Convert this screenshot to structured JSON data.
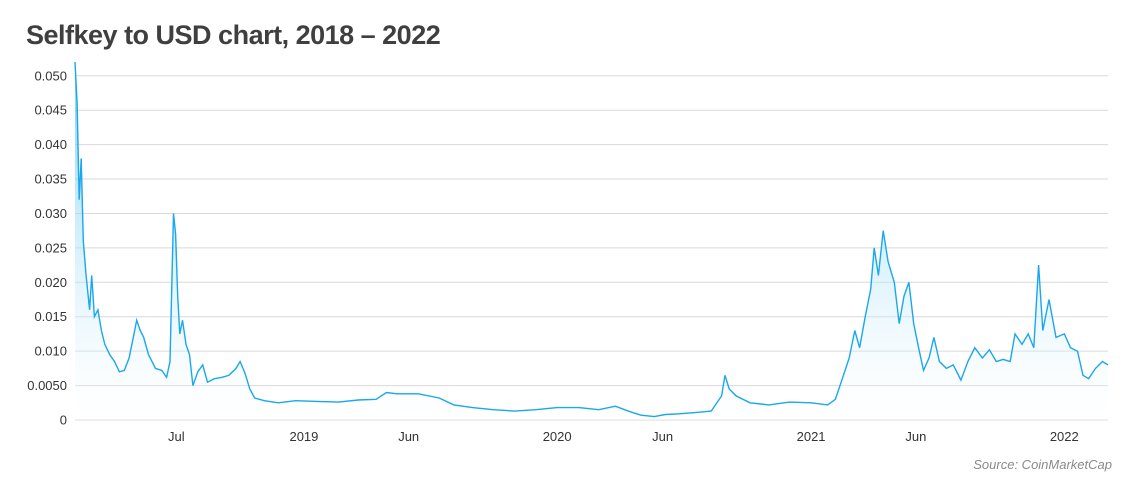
{
  "title": "Selfkey to USD chart, 2018 – 2022",
  "source": "Source: CoinMarketCap",
  "colors": {
    "line": "#1aa7ec",
    "fill_top": "#4fc0f2",
    "grid": "#d9d9d9"
  },
  "chart_data": {
    "type": "area",
    "title": "Selfkey to USD chart, 2018 – 2022",
    "xlabel": "",
    "ylabel": "",
    "grid": true,
    "ylim": [
      0,
      0.052
    ],
    "xlim": [
      "2018-02-05",
      "2022-03-05"
    ],
    "y_ticks": [
      {
        "value": 0,
        "label": "0"
      },
      {
        "value": 0.005,
        "label": "0.0050"
      },
      {
        "value": 0.01,
        "label": "0.010"
      },
      {
        "value": 0.015,
        "label": "0.015"
      },
      {
        "value": 0.02,
        "label": "0.020"
      },
      {
        "value": 0.025,
        "label": "0.025"
      },
      {
        "value": 0.03,
        "label": "0.030"
      },
      {
        "value": 0.035,
        "label": "0.035"
      },
      {
        "value": 0.04,
        "label": "0.040"
      },
      {
        "value": 0.045,
        "label": "0.045"
      },
      {
        "value": 0.05,
        "label": "0.050"
      }
    ],
    "x_ticks": [
      {
        "date": "2018-07-01",
        "label": "Jul"
      },
      {
        "date": "2019-01-01",
        "label": "2019"
      },
      {
        "date": "2019-06-01",
        "label": "Jun"
      },
      {
        "date": "2020-01-01",
        "label": "2020"
      },
      {
        "date": "2020-06-01",
        "label": "Jun"
      },
      {
        "date": "2021-01-01",
        "label": "2021"
      },
      {
        "date": "2021-06-01",
        "label": "Jun"
      },
      {
        "date": "2022-01-01",
        "label": "2022"
      }
    ],
    "series": [
      {
        "points": [
          [
            "2018-02-05",
            0.052
          ],
          [
            "2018-02-08",
            0.046
          ],
          [
            "2018-02-11",
            0.032
          ],
          [
            "2018-02-14",
            0.038
          ],
          [
            "2018-02-17",
            0.026
          ],
          [
            "2018-02-21",
            0.021
          ],
          [
            "2018-02-26",
            0.016
          ],
          [
            "2018-03-01",
            0.021
          ],
          [
            "2018-03-05",
            0.015
          ],
          [
            "2018-03-10",
            0.016
          ],
          [
            "2018-03-15",
            0.013
          ],
          [
            "2018-03-20",
            0.011
          ],
          [
            "2018-03-27",
            0.0095
          ],
          [
            "2018-04-03",
            0.0085
          ],
          [
            "2018-04-10",
            0.007
          ],
          [
            "2018-04-17",
            0.0072
          ],
          [
            "2018-04-24",
            0.009
          ],
          [
            "2018-05-01",
            0.0125
          ],
          [
            "2018-05-05",
            0.0145
          ],
          [
            "2018-05-10",
            0.013
          ],
          [
            "2018-05-15",
            0.012
          ],
          [
            "2018-05-22",
            0.0095
          ],
          [
            "2018-06-01",
            0.0075
          ],
          [
            "2018-06-10",
            0.0072
          ],
          [
            "2018-06-17",
            0.0062
          ],
          [
            "2018-06-22",
            0.0085
          ],
          [
            "2018-06-27",
            0.03
          ],
          [
            "2018-06-30",
            0.027
          ],
          [
            "2018-07-03",
            0.018
          ],
          [
            "2018-07-06",
            0.0125
          ],
          [
            "2018-07-10",
            0.0145
          ],
          [
            "2018-07-15",
            0.011
          ],
          [
            "2018-07-20",
            0.0095
          ],
          [
            "2018-07-25",
            0.005
          ],
          [
            "2018-08-01",
            0.007
          ],
          [
            "2018-08-08",
            0.008
          ],
          [
            "2018-08-15",
            0.0055
          ],
          [
            "2018-08-25",
            0.006
          ],
          [
            "2018-09-05",
            0.0062
          ],
          [
            "2018-09-15",
            0.0065
          ],
          [
            "2018-09-25",
            0.0075
          ],
          [
            "2018-10-01",
            0.0085
          ],
          [
            "2018-10-08",
            0.0068
          ],
          [
            "2018-10-15",
            0.0045
          ],
          [
            "2018-10-22",
            0.0032
          ],
          [
            "2018-11-05",
            0.0028
          ],
          [
            "2018-11-25",
            0.0025
          ],
          [
            "2018-12-20",
            0.0028
          ],
          [
            "2019-01-20",
            0.0027
          ],
          [
            "2019-02-20",
            0.0026
          ],
          [
            "2019-03-20",
            0.0029
          ],
          [
            "2019-04-15",
            0.003
          ],
          [
            "2019-04-30",
            0.004
          ],
          [
            "2019-05-15",
            0.0038
          ],
          [
            "2019-06-15",
            0.0038
          ],
          [
            "2019-07-15",
            0.0032
          ],
          [
            "2019-08-05",
            0.0022
          ],
          [
            "2019-09-01",
            0.0018
          ],
          [
            "2019-10-01",
            0.0015
          ],
          [
            "2019-11-01",
            0.0013
          ],
          [
            "2019-12-01",
            0.0015
          ],
          [
            "2020-01-01",
            0.0018
          ],
          [
            "2020-02-01",
            0.0018
          ],
          [
            "2020-03-01",
            0.0015
          ],
          [
            "2020-03-25",
            0.002
          ],
          [
            "2020-04-15",
            0.0012
          ],
          [
            "2020-05-01",
            0.0007
          ],
          [
            "2020-05-20",
            0.0005
          ],
          [
            "2020-06-05",
            0.0008
          ],
          [
            "2020-06-25",
            0.0009
          ],
          [
            "2020-07-20",
            0.0011
          ],
          [
            "2020-08-10",
            0.0013
          ],
          [
            "2020-08-25",
            0.0035
          ],
          [
            "2020-08-30",
            0.0065
          ],
          [
            "2020-09-05",
            0.0045
          ],
          [
            "2020-09-15",
            0.0035
          ],
          [
            "2020-10-05",
            0.0025
          ],
          [
            "2020-11-01",
            0.0022
          ],
          [
            "2020-12-01",
            0.0026
          ],
          [
            "2021-01-01",
            0.0025
          ],
          [
            "2021-01-25",
            0.0022
          ],
          [
            "2021-02-05",
            0.003
          ],
          [
            "2021-02-15",
            0.006
          ],
          [
            "2021-02-25",
            0.009
          ],
          [
            "2021-03-05",
            0.013
          ],
          [
            "2021-03-12",
            0.0105
          ],
          [
            "2021-03-20",
            0.015
          ],
          [
            "2021-03-28",
            0.019
          ],
          [
            "2021-04-02",
            0.025
          ],
          [
            "2021-04-08",
            0.021
          ],
          [
            "2021-04-15",
            0.0275
          ],
          [
            "2021-04-22",
            0.023
          ],
          [
            "2021-05-01",
            0.02
          ],
          [
            "2021-05-08",
            0.014
          ],
          [
            "2021-05-15",
            0.018
          ],
          [
            "2021-05-22",
            0.02
          ],
          [
            "2021-05-29",
            0.014
          ],
          [
            "2021-06-05",
            0.0105
          ],
          [
            "2021-06-12",
            0.0072
          ],
          [
            "2021-06-20",
            0.009
          ],
          [
            "2021-06-27",
            0.012
          ],
          [
            "2021-07-05",
            0.0085
          ],
          [
            "2021-07-15",
            0.0075
          ],
          [
            "2021-07-25",
            0.008
          ],
          [
            "2021-08-05",
            0.0058
          ],
          [
            "2021-08-15",
            0.0085
          ],
          [
            "2021-08-25",
            0.0105
          ],
          [
            "2021-09-05",
            0.009
          ],
          [
            "2021-09-15",
            0.0102
          ],
          [
            "2021-09-25",
            0.0085
          ],
          [
            "2021-10-05",
            0.0088
          ],
          [
            "2021-10-15",
            0.0085
          ],
          [
            "2021-10-22",
            0.0125
          ],
          [
            "2021-11-01",
            0.011
          ],
          [
            "2021-11-10",
            0.0125
          ],
          [
            "2021-11-18",
            0.0105
          ],
          [
            "2021-11-25",
            0.0225
          ],
          [
            "2021-12-01",
            0.013
          ],
          [
            "2021-12-10",
            0.0175
          ],
          [
            "2021-12-20",
            0.012
          ],
          [
            "2022-01-01",
            0.0125
          ],
          [
            "2022-01-10",
            0.0105
          ],
          [
            "2022-01-20",
            0.01
          ],
          [
            "2022-01-28",
            0.0065
          ],
          [
            "2022-02-05",
            0.006
          ],
          [
            "2022-02-15",
            0.0075
          ],
          [
            "2022-02-25",
            0.0085
          ],
          [
            "2022-03-05",
            0.008
          ]
        ]
      }
    ]
  }
}
